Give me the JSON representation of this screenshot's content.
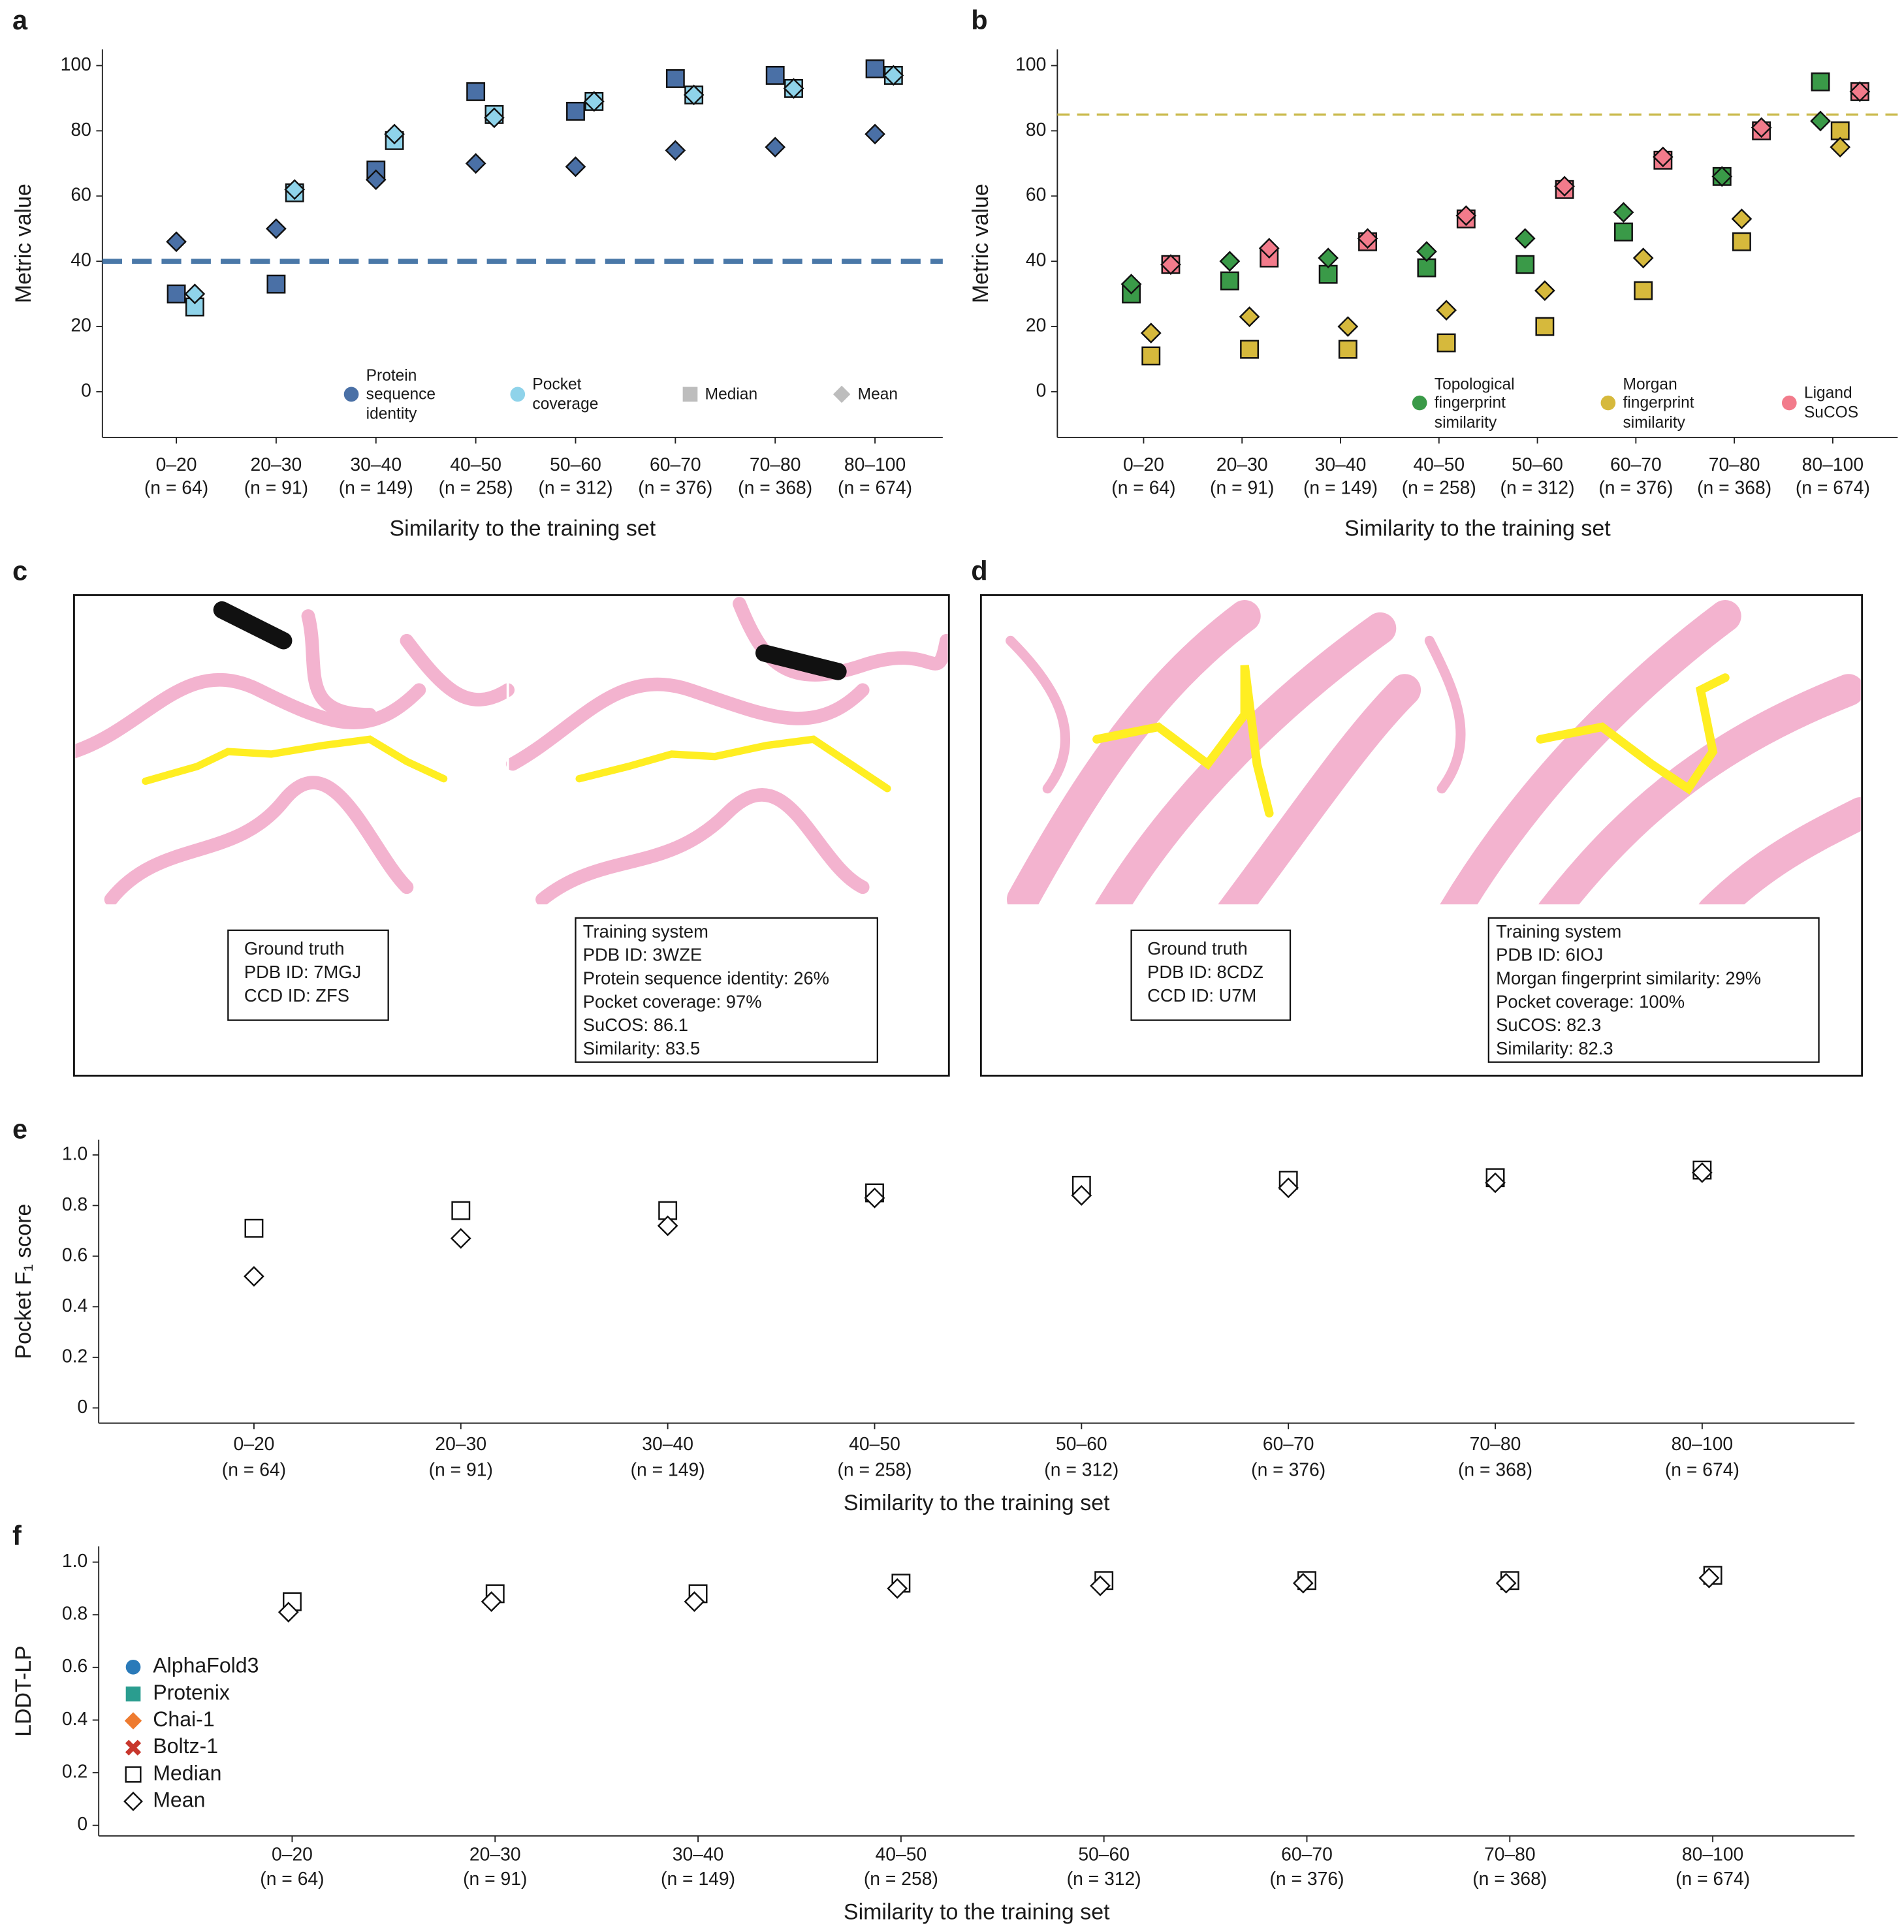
{
  "chart_data": [
    {
      "type": "violin",
      "panel": "a",
      "ylabel": "Metric value",
      "xlabel": "Similarity to the training set",
      "categories": [
        "0–20",
        "20–30",
        "30–40",
        "40–50",
        "50–60",
        "60–70",
        "70–80",
        "80–100"
      ],
      "n_labels": [
        "(n = 64)",
        "(n = 91)",
        "(n = 149)",
        "(n = 258)",
        "(n = 312)",
        "(n = 376)",
        "(n = 368)",
        "(n = 674)"
      ],
      "ylim": [
        -14,
        105
      ],
      "yticks": [
        0,
        20,
        40,
        60,
        80,
        100
      ],
      "threshold": {
        "value": 40,
        "color": "#4a78a8"
      },
      "series": [
        {
          "name": "Protein sequence identity",
          "color": "#4a70a6",
          "median": [
            30,
            33,
            68,
            92,
            86,
            96,
            97,
            99
          ],
          "mean": [
            46,
            50,
            65,
            70,
            69,
            74,
            75,
            79
          ]
        },
        {
          "name": "Pocket coverage",
          "color": "#8fd3ea",
          "median": [
            26,
            61,
            77,
            85,
            89,
            91,
            93,
            97
          ],
          "mean": [
            30,
            62,
            79,
            84,
            89,
            91,
            93,
            97
          ]
        }
      ],
      "marker_names": {
        "median": "Median",
        "mean": "Mean"
      },
      "marker_color": "#bdbdbd"
    },
    {
      "type": "violin",
      "panel": "b",
      "ylabel": "Metric value",
      "xlabel": "Similarity to the training set",
      "categories": [
        "0–20",
        "20–30",
        "30–40",
        "40–50",
        "50–60",
        "60–70",
        "70–80",
        "80–100"
      ],
      "n_labels": [
        "(n = 64)",
        "(n = 91)",
        "(n = 149)",
        "(n = 258)",
        "(n = 312)",
        "(n = 376)",
        "(n = 368)",
        "(n = 674)"
      ],
      "ylim": [
        -14,
        105
      ],
      "yticks": [
        0,
        20,
        40,
        60,
        80,
        100
      ],
      "threshold": {
        "value": 85,
        "color": "#c9b94a"
      },
      "series": [
        {
          "name": "Topological fingerprint similarity",
          "color": "#3a9a48",
          "median": [
            30,
            34,
            36,
            38,
            39,
            49,
            66,
            95
          ],
          "mean": [
            33,
            40,
            41,
            43,
            47,
            55,
            66,
            83
          ]
        },
        {
          "name": "Morgan fingerprint similarity",
          "color": "#d6b93c",
          "median": [
            11,
            13,
            13,
            15,
            20,
            31,
            46,
            80
          ],
          "mean": [
            18,
            23,
            20,
            25,
            31,
            41,
            53,
            75
          ]
        },
        {
          "name": "Ligand SuCOS",
          "color": "#f27b8b",
          "median": [
            39,
            41,
            46,
            53,
            62,
            71,
            80,
            92
          ],
          "mean": [
            39,
            44,
            47,
            54,
            63,
            72,
            81,
            92
          ]
        }
      ]
    },
    {
      "type": "violin",
      "panel": "e",
      "ylabel": "Pocket F₁ score",
      "xlabel": "Similarity to the training set",
      "categories": [
        "0–20",
        "20–30",
        "30–40",
        "40–50",
        "50–60",
        "60–70",
        "70–80",
        "80–100"
      ],
      "n_labels": [
        "(n = 64)",
        "(n = 91)",
        "(n = 149)",
        "(n = 258)",
        "(n = 312)",
        "(n = 376)",
        "(n = 368)",
        "(n = 674)"
      ],
      "ylim": [
        -0.06,
        1.06
      ],
      "yticks": [
        0,
        0.2,
        0.4,
        0.6,
        0.8,
        {
          "value": 1,
          "label": "1.0"
        }
      ],
      "series": [
        {
          "color": "#ffffff",
          "median": [
            0.71,
            0.78,
            0.78,
            0.85,
            0.88,
            0.9,
            0.91,
            0.94
          ],
          "mean": [
            0.52,
            0.67,
            0.72,
            0.83,
            0.84,
            0.87,
            0.89,
            0.93
          ]
        }
      ]
    },
    {
      "type": "violin",
      "panel": "f",
      "ylabel": "LDDT-LP",
      "xlabel": "Similarity to the training set",
      "categories": [
        "0–20",
        "20–30",
        "30–40",
        "40–50",
        "50–60",
        "60–70",
        "70–80",
        "80–100"
      ],
      "n_labels": [
        "(n = 64)",
        "(n = 91)",
        "(n = 149)",
        "(n = 258)",
        "(n = 312)",
        "(n = 376)",
        "(n = 368)",
        "(n = 674)"
      ],
      "ylim": [
        -0.04,
        1.06
      ],
      "yticks": [
        0,
        0.2,
        0.4,
        0.6,
        0.8,
        {
          "value": 1,
          "label": "1.0"
        }
      ],
      "series": [
        {
          "color": "#ffffff",
          "median": [
            0.85,
            0.88,
            0.88,
            0.92,
            0.93,
            0.93,
            0.93,
            0.95
          ],
          "mean": [
            0.81,
            0.85,
            0.85,
            0.9,
            0.91,
            0.92,
            0.92,
            0.94
          ]
        }
      ],
      "legend": [
        {
          "name": "AlphaFold3",
          "color": "#2a7ab9",
          "marker": "circle"
        },
        {
          "name": "Protenix",
          "color": "#2a9d8f",
          "marker": "square"
        },
        {
          "name": "Chai-1",
          "color": "#ee7b30",
          "marker": "diamond"
        },
        {
          "name": "Boltz-1",
          "color": "#c8372d",
          "marker": "x"
        },
        {
          "name": "Median",
          "color": "#ffffff",
          "marker": "square"
        },
        {
          "name": "Mean",
          "color": "#ffffff",
          "marker": "diamond"
        }
      ]
    }
  ],
  "structures": [
    {
      "panel": "c",
      "ground_truth": [
        "Ground truth",
        "PDB ID: 7MGJ",
        "CCD ID: ZFS"
      ],
      "training": [
        "Training system",
        "PDB ID: 3WZE",
        "Protein sequence identity: 26%",
        "Pocket coverage: 97%",
        "SuCOS: 86.1",
        "Similarity: 83.5"
      ]
    },
    {
      "panel": "d",
      "ground_truth": [
        "Ground truth",
        "PDB ID: 8CDZ",
        "CCD ID: U7M"
      ],
      "training": [
        "Training system",
        "PDB ID: 6IOJ",
        "Morgan fingerprint similarity: 29%",
        "Pocket coverage: 100%",
        "SuCOS: 82.3",
        "Similarity: 82.3"
      ]
    }
  ]
}
